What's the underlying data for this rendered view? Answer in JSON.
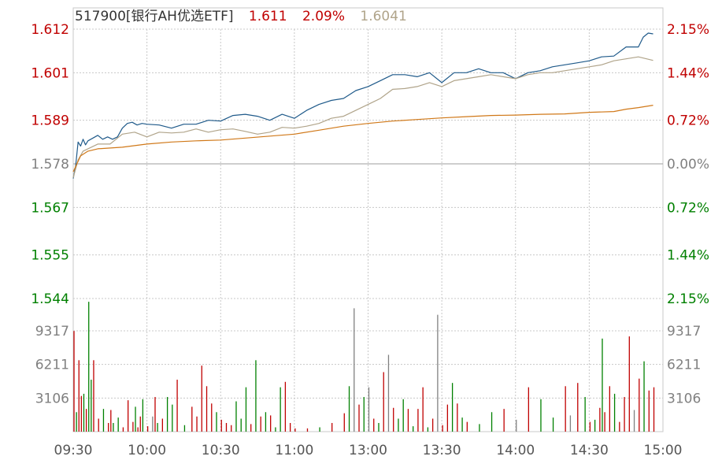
{
  "header": {
    "code_name": "517900[银行AH优选ETF]",
    "price": "1.611",
    "change_pct": "2.09%",
    "avg_price": "1.6041"
  },
  "colors": {
    "up": "#c00000",
    "down": "#008000",
    "neutral": "#808080",
    "price_line": "#1f5a8a",
    "avg_line": "#b0a48a",
    "ma_line": "#d07818",
    "grid": "#c8c8c8",
    "header_text": "#333333"
  },
  "chart_data": [
    {
      "type": "line",
      "title": "",
      "price_axis": {
        "ticks": [
          "1.612",
          "1.601",
          "1.589",
          "1.578",
          "1.567",
          "1.555",
          "1.544"
        ],
        "values": [
          1.612,
          1.601,
          1.589,
          1.578,
          1.567,
          1.555,
          1.544
        ],
        "tick_colors": [
          "up",
          "up",
          "up",
          "neutral",
          "down",
          "down",
          "down"
        ],
        "ylim": [
          1.544,
          1.612
        ]
      },
      "pct_axis": {
        "ticks": [
          "2.15%",
          "1.44%",
          "0.72%",
          "0.00%",
          "0.72%",
          "1.44%",
          "2.15%"
        ],
        "tick_colors": [
          "up",
          "up",
          "up",
          "neutral",
          "down",
          "down",
          "down"
        ]
      },
      "x_ticks": [
        "09:30",
        "10:00",
        "10:30",
        "11:00",
        "13:00",
        "13:30",
        "14:00",
        "14:30",
        "15:00"
      ],
      "x_minutes": [
        0,
        30,
        60,
        90,
        120,
        150,
        180,
        210,
        240
      ],
      "series": [
        {
          "color": "price_line",
          "x": [
            0,
            1,
            2,
            3,
            4,
            5,
            6,
            8,
            10,
            12,
            14,
            16,
            18,
            20,
            22,
            24,
            26,
            28,
            30,
            35,
            40,
            45,
            50,
            55,
            60,
            65,
            70,
            75,
            80,
            85,
            90,
            95,
            100,
            105,
            110,
            115,
            120,
            125,
            130,
            135,
            140,
            145,
            150,
            155,
            160,
            165,
            170,
            175,
            180,
            185,
            190,
            195,
            200,
            205,
            210,
            215,
            220,
            225,
            230,
            232,
            234,
            236
          ],
          "y": [
            1.5743,
            1.5775,
            1.5835,
            1.5825,
            1.5842,
            1.5828,
            1.5838,
            1.5845,
            1.5852,
            1.5842,
            1.5848,
            1.5842,
            1.5848,
            1.587,
            1.5882,
            1.5885,
            1.5878,
            1.5882,
            1.588,
            1.5878,
            1.587,
            1.588,
            1.588,
            1.589,
            1.5888,
            1.5902,
            1.5905,
            1.59,
            1.589,
            1.5905,
            1.5895,
            1.5915,
            1.593,
            1.594,
            1.5945,
            1.5965,
            1.5975,
            1.599,
            1.6005,
            1.6005,
            1.6,
            1.601,
            1.5985,
            1.601,
            1.601,
            1.602,
            1.601,
            1.601,
            1.5995,
            1.601,
            1.6015,
            1.6025,
            1.603,
            1.6035,
            1.604,
            1.605,
            1.6052,
            1.6075,
            1.6075,
            1.61,
            1.611,
            1.6108
          ]
        },
        {
          "color": "avg_line",
          "x": [
            0,
            2,
            4,
            6,
            10,
            15,
            20,
            25,
            30,
            35,
            40,
            45,
            50,
            55,
            60,
            65,
            70,
            75,
            80,
            85,
            90,
            95,
            100,
            105,
            110,
            115,
            120,
            125,
            130,
            135,
            140,
            145,
            150,
            155,
            160,
            165,
            170,
            175,
            180,
            185,
            190,
            195,
            200,
            205,
            210,
            215,
            220,
            225,
            230,
            236
          ],
          "y": [
            1.5745,
            1.579,
            1.5812,
            1.5818,
            1.583,
            1.583,
            1.5855,
            1.586,
            1.5848,
            1.586,
            1.5858,
            1.586,
            1.5868,
            1.586,
            1.5866,
            1.5868,
            1.5862,
            1.5855,
            1.586,
            1.5872,
            1.587,
            1.5875,
            1.5882,
            1.5895,
            1.59,
            1.5915,
            1.593,
            1.5945,
            1.5968,
            1.597,
            1.5975,
            1.5985,
            1.5975,
            1.599,
            1.5995,
            1.6,
            1.6005,
            1.6,
            1.5995,
            1.6005,
            1.601,
            1.601,
            1.6015,
            1.602,
            1.6025,
            1.603,
            1.604,
            1.6045,
            1.605,
            1.6041
          ]
        },
        {
          "color": "ma_line",
          "x": [
            0,
            3,
            6,
            10,
            20,
            30,
            40,
            50,
            60,
            70,
            80,
            90,
            100,
            110,
            120,
            130,
            140,
            150,
            160,
            170,
            180,
            190,
            200,
            210,
            220,
            225,
            230,
            236
          ],
          "y": [
            1.576,
            1.58,
            1.5812,
            1.5818,
            1.5822,
            1.583,
            1.5835,
            1.5838,
            1.584,
            1.5845,
            1.585,
            1.5855,
            1.5865,
            1.5875,
            1.5882,
            1.5888,
            1.5892,
            1.5896,
            1.5899,
            1.5902,
            1.5903,
            1.5905,
            1.5906,
            1.591,
            1.5912,
            1.5918,
            1.5922,
            1.5928
          ]
        }
      ]
    },
    {
      "type": "bar",
      "title": "",
      "y_ticks": [
        "9317",
        "6211",
        "3106"
      ],
      "y_tick_values": [
        9317,
        6211,
        3106
      ],
      "ylim": [
        0,
        12300
      ],
      "x_minutes": [
        0,
        1,
        2,
        3,
        4,
        5,
        6,
        7,
        8,
        10,
        12,
        14,
        15,
        16,
        18,
        20,
        22,
        24,
        25,
        26,
        27,
        28,
        30,
        32,
        33,
        34,
        36,
        38,
        40,
        42,
        45,
        48,
        50,
        52,
        54,
        56,
        58,
        60,
        62,
        64,
        66,
        68,
        70,
        72,
        74,
        76,
        78,
        80,
        82,
        84,
        86,
        88,
        90,
        95,
        100,
        105,
        110,
        112,
        114,
        116,
        118,
        120,
        122,
        124,
        126,
        128,
        130,
        132,
        134,
        136,
        138,
        140,
        142,
        144,
        146,
        148,
        150,
        152,
        154,
        156,
        158,
        160,
        165,
        170,
        175,
        180,
        185,
        190,
        195,
        200,
        202,
        205,
        208,
        210,
        212,
        214,
        215,
        216,
        218,
        220,
        222,
        224,
        226,
        228,
        230,
        232,
        234,
        236
      ],
      "values": [
        9300,
        1800,
        6600,
        3300,
        3500,
        2100,
        12000,
        4800,
        6600,
        1200,
        2100,
        800,
        2000,
        800,
        1300,
        400,
        2900,
        900,
        2300,
        400,
        1400,
        3000,
        500,
        1400,
        3200,
        800,
        1200,
        3200,
        2500,
        4800,
        600,
        2300,
        1400,
        6100,
        4200,
        2600,
        1800,
        1100,
        800,
        600,
        2800,
        1200,
        4100,
        700,
        6600,
        1400,
        1800,
        1500,
        400,
        4100,
        4600,
        800,
        300,
        300,
        400,
        800,
        1700,
        4200,
        11400,
        2500,
        3200,
        4100,
        1200,
        800,
        5500,
        7100,
        2200,
        1200,
        3000,
        2100,
        500,
        2100,
        4100,
        400,
        1200,
        10800,
        600,
        2500,
        4500,
        2600,
        1300,
        900,
        700,
        1800,
        2100,
        1100,
        4100,
        3000,
        1300,
        4200,
        1500,
        4500,
        3200,
        900,
        1100,
        2200,
        8600,
        1800,
        4200,
        3500,
        900,
        3200,
        8800,
        2000,
        4900,
        6500,
        3800,
        4100
      ],
      "directions": [
        "up",
        "down",
        "up",
        "up",
        "down",
        "up",
        "down",
        "down",
        "up",
        "up",
        "down",
        "up",
        "up",
        "down",
        "down",
        "up",
        "up",
        "up",
        "down",
        "up",
        "up",
        "down",
        "up",
        "neutral",
        "up",
        "down",
        "up",
        "down",
        "down",
        "up",
        "down",
        "up",
        "up",
        "up",
        "up",
        "up",
        "down",
        "up",
        "up",
        "up",
        "down",
        "down",
        "down",
        "up",
        "down",
        "up",
        "down",
        "up",
        "down",
        "down",
        "up",
        "up",
        "up",
        "up",
        "down",
        "up",
        "up",
        "down",
        "neutral",
        "up",
        "down",
        "neutral",
        "up",
        "down",
        "up",
        "neutral",
        "up",
        "down",
        "down",
        "up",
        "down",
        "up",
        "up",
        "down",
        "up",
        "neutral",
        "up",
        "up",
        "down",
        "up",
        "down",
        "up",
        "down",
        "down",
        "up",
        "neutral",
        "up",
        "down",
        "down",
        "up",
        "neutral",
        "up",
        "down",
        "up",
        "down",
        "up",
        "down",
        "up",
        "up",
        "down",
        "up",
        "up",
        "up",
        "neutral",
        "up",
        "down",
        "up",
        "up"
      ]
    }
  ]
}
